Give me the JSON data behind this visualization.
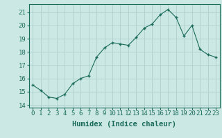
{
  "x": [
    0,
    1,
    2,
    3,
    4,
    5,
    6,
    7,
    8,
    9,
    10,
    11,
    12,
    13,
    14,
    15,
    16,
    17,
    18,
    19,
    20,
    21,
    22,
    23
  ],
  "y": [
    15.5,
    15.1,
    14.6,
    14.5,
    14.8,
    15.6,
    16.0,
    16.2,
    17.6,
    18.3,
    18.7,
    18.6,
    18.5,
    19.1,
    19.8,
    20.1,
    20.8,
    21.2,
    20.6,
    19.2,
    20.0,
    18.2,
    17.8,
    17.6
  ],
  "line_color": "#1a6b5a",
  "marker": "+",
  "marker_color": "#1a6b5a",
  "bg_color": "#cce8e4",
  "grid_color": "#aed0cc",
  "xlabel": "Humidex (Indice chaleur)",
  "xlim": [
    -0.5,
    23.5
  ],
  "ylim": [
    13.8,
    21.6
  ],
  "yticks": [
    14,
    15,
    16,
    17,
    18,
    19,
    20,
    21
  ],
  "xtick_labels": [
    "0",
    "1",
    "2",
    "3",
    "4",
    "5",
    "6",
    "7",
    "8",
    "9",
    "10",
    "11",
    "12",
    "13",
    "14",
    "15",
    "16",
    "17",
    "18",
    "19",
    "20",
    "21",
    "22",
    "23"
  ],
  "tick_color": "#1a6b5a",
  "label_fontsize": 7.5,
  "tick_fontsize": 6.5
}
